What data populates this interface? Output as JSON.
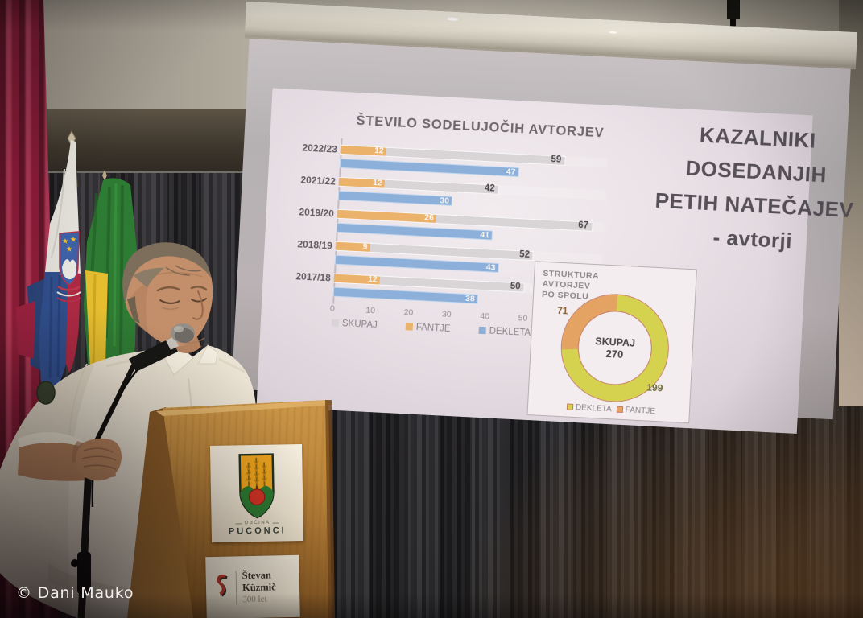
{
  "watermark": {
    "text": "© Dani Mauko"
  },
  "slide": {
    "headline_lines": [
      "KAZALNIKI",
      "DOSEDANJIH",
      "PETIH NATEČAJEV",
      "- avtorji"
    ]
  },
  "chart_data": [
    {
      "type": "bar",
      "orientation": "horizontal",
      "title": "ŠTEVILO SODELUJOČIH AVTORJEV",
      "categories": [
        "2022/23",
        "2021/22",
        "2019/20",
        "2018/19",
        "2017/18"
      ],
      "series": [
        {
          "name": "SKUPAJ",
          "color": "#d9d5d7",
          "values": [
            59,
            42,
            67,
            52,
            50
          ]
        },
        {
          "name": "FANTJE",
          "color": "#eab26a",
          "values": [
            12,
            12,
            26,
            9,
            12
          ]
        },
        {
          "name": "DEKLETA",
          "color": "#8cb0da",
          "values": [
            47,
            30,
            41,
            43,
            38
          ]
        }
      ],
      "x_ticks": [
        0,
        10,
        20,
        30,
        40,
        50
      ],
      "xlim": [
        0,
        70
      ],
      "grid": false,
      "legend_position": "bottom"
    },
    {
      "type": "pie",
      "subtype": "donut",
      "title": "STRUKTURA AVTORJEV PO SPOLU",
      "title_lines": [
        "STRUKTURA",
        "AVTORJEV",
        "PO SPOLU"
      ],
      "center_label": "SKUPAJ",
      "center_value": 270,
      "slices": [
        {
          "name": "DEKLETA",
          "value": 199,
          "color": "#d5d24f"
        },
        {
          "name": "FANTJE",
          "value": 71,
          "color": "#e4a263"
        }
      ],
      "legend_position": "bottom"
    }
  ],
  "podium": {
    "sign_obcina": {
      "small_label": "OBČINA",
      "label": "PUCONCI"
    },
    "sign_kuzmic": {
      "title": "Števan Küzmič",
      "subtitle": "300 let"
    }
  }
}
